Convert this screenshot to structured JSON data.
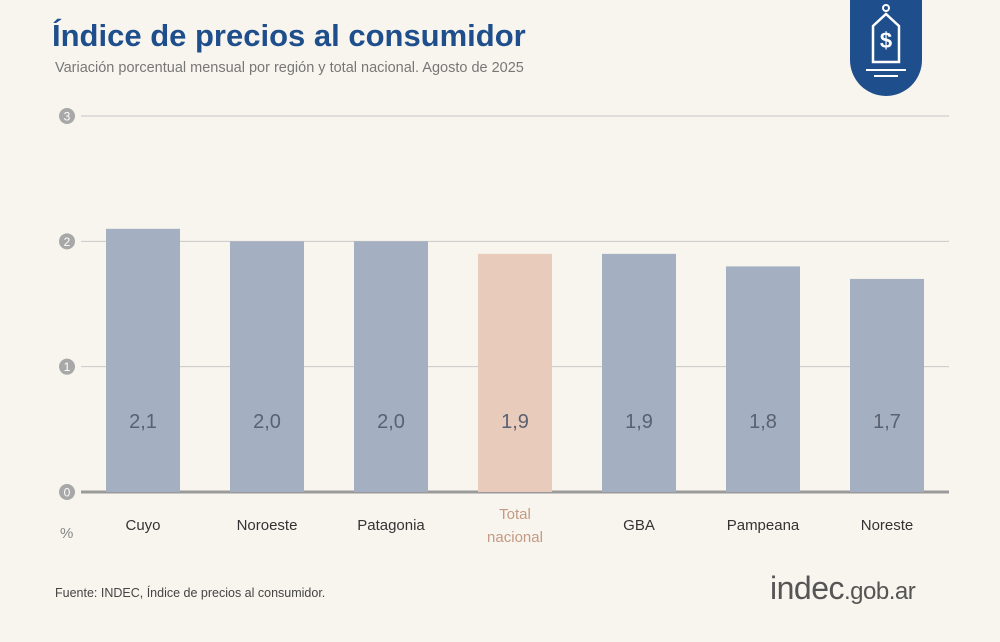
{
  "chart_data": {
    "type": "bar",
    "title": "Índice de precios al consumidor",
    "subtitle": "Variación porcentual mensual por región y total nacional. Agosto de 2025",
    "y_unit": "%",
    "categories": [
      "Cuyo",
      "Noroeste",
      "Patagonia",
      "Total nacional",
      "GBA",
      "Pampeana",
      "Noreste"
    ],
    "values": [
      2.1,
      2.0,
      2.0,
      1.9,
      1.9,
      1.8,
      1.7
    ],
    "value_labels": [
      "2,1",
      "2,0",
      "2,0",
      "1,9",
      "1,9",
      "1,8",
      "1,7"
    ],
    "colors": [
      "#a4afc1",
      "#a4afc1",
      "#a4afc1",
      "#e8cbbb",
      "#a4afc1",
      "#a4afc1",
      "#a4afc1"
    ],
    "ylim": [
      0,
      3
    ],
    "yticks": [
      0,
      1,
      2,
      3
    ],
    "grid": true,
    "source": "Fuente: INDEC, Índice de precios al consumidor.",
    "logo": {
      "name": "indec",
      "domain": ".gob.ar"
    }
  }
}
